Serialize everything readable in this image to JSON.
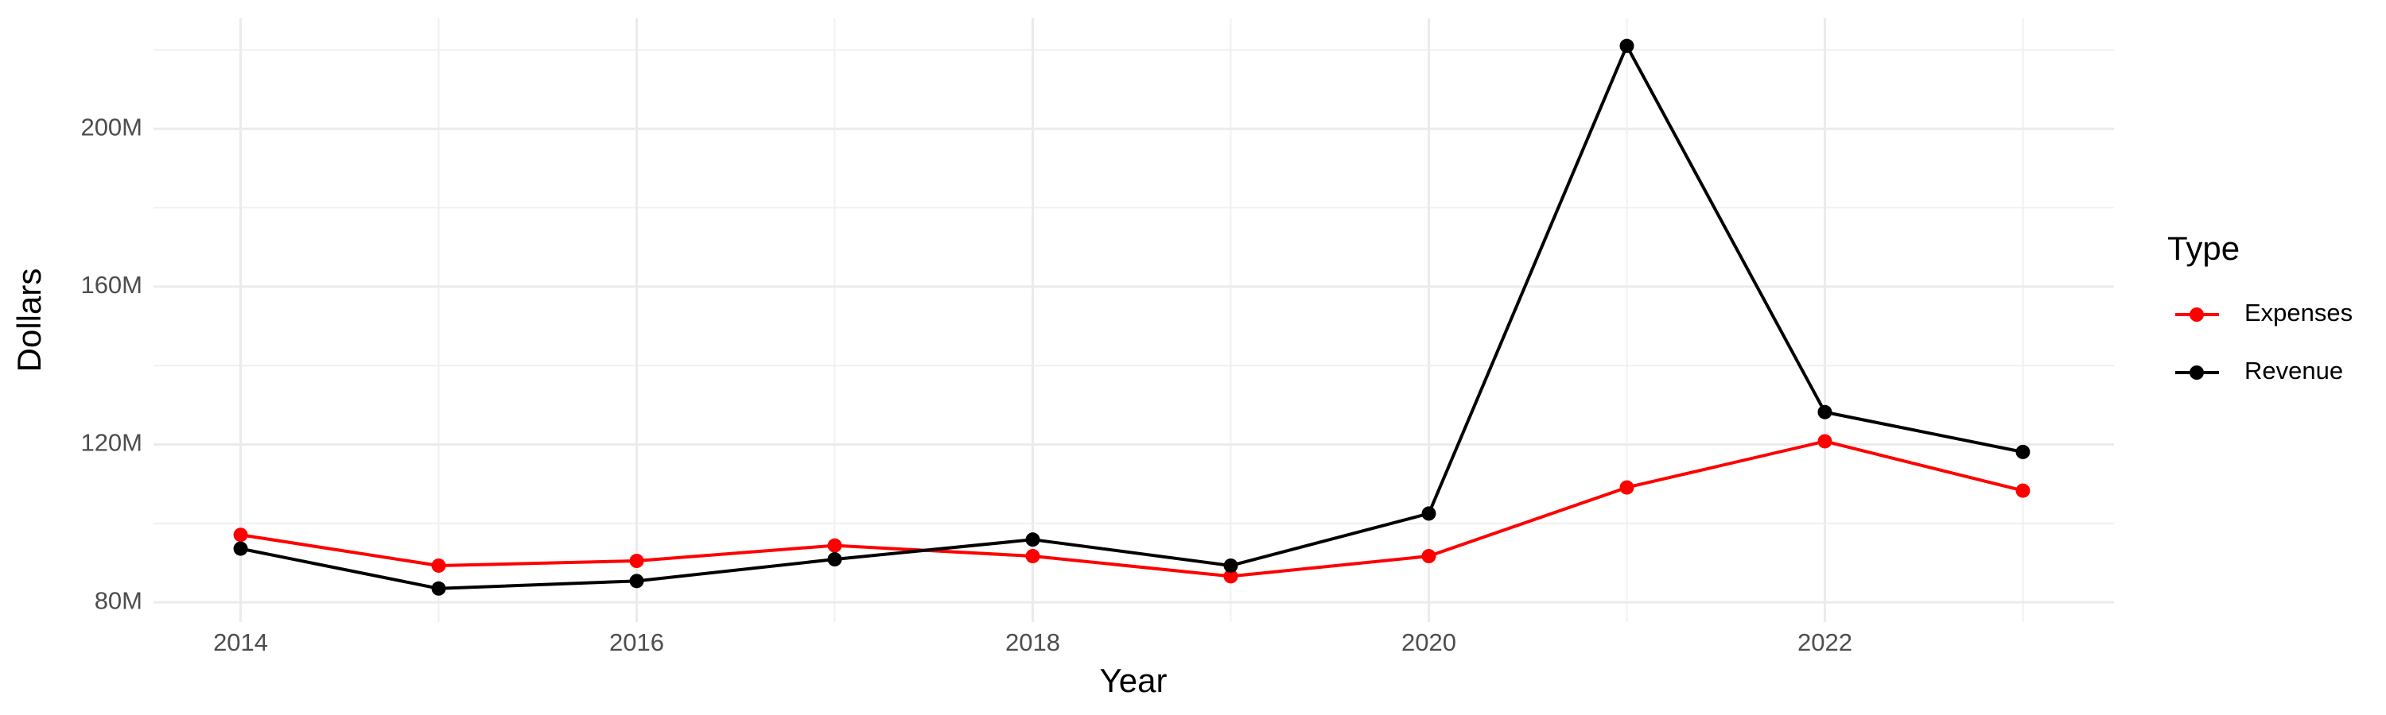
{
  "chart_data": {
    "type": "line",
    "x_label": "Year",
    "y_label": "Dollars",
    "x": [
      2014,
      2015,
      2016,
      2017,
      2018,
      2019,
      2020,
      2021,
      2022,
      2023
    ],
    "series": [
      {
        "name": "Expenses",
        "color": "#ff0000",
        "values": [
          97100000,
          89300000,
          90500000,
          94400000,
          91700000,
          86600000,
          91700000,
          109100000,
          120800000,
          108300000
        ]
      },
      {
        "name": "Revenue",
        "color": "#000000",
        "values": [
          93600000,
          83500000,
          85400000,
          90900000,
          95900000,
          89300000,
          102500000,
          221000000,
          128200000,
          118100000
        ]
      }
    ],
    "xlim": [
      2013.56,
      2023.46
    ],
    "xticks": [
      2014,
      2016,
      2018,
      2020,
      2022
    ],
    "ylim": [
      75000000,
      228000000
    ],
    "yticks": [
      {
        "value": 80000000,
        "label": "80M"
      },
      {
        "value": 120000000,
        "label": "120M"
      },
      {
        "value": 160000000,
        "label": "160M"
      },
      {
        "value": 200000000,
        "label": "200M"
      }
    ],
    "grid": true,
    "minor_grid": true,
    "legend_title": "Type",
    "legend_position": "right"
  }
}
